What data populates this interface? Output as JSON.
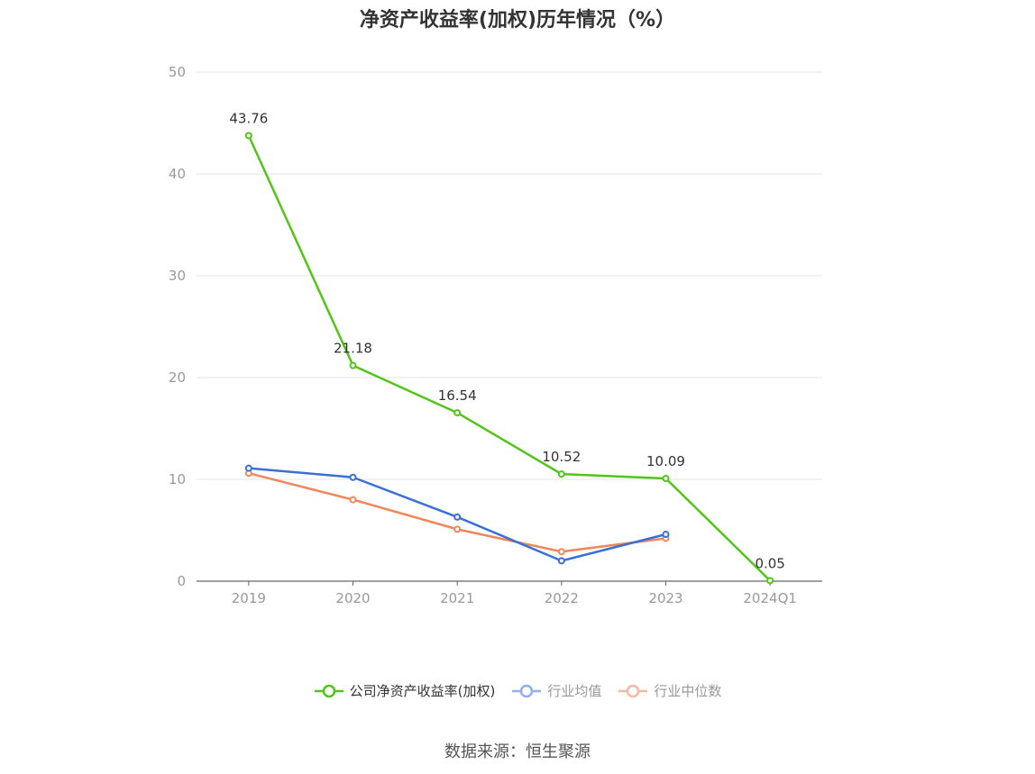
{
  "source": "数据来源：恒生聚源",
  "chart_data": {
    "type": "line",
    "title": "净资产收益率(加权)历年情况（%）",
    "categories": [
      "2019",
      "2020",
      "2021",
      "2022",
      "2023",
      "2024Q1"
    ],
    "ylim": [
      0,
      50
    ],
    "yticks": [
      "0",
      "10",
      "20",
      "30",
      "40",
      "50"
    ],
    "grid": true,
    "legend_position": "bottom",
    "series": [
      {
        "name": "公司净资产收益率(加权)",
        "color": "#52c41a",
        "values": [
          43.76,
          21.18,
          16.54,
          10.52,
          10.09,
          0.05
        ],
        "labels": [
          "43.76",
          "21.18",
          "16.54",
          "10.52",
          "10.09",
          "0.05"
        ],
        "legend_text_color": "#333333"
      },
      {
        "name": "行业均值",
        "color": "#3a6fd8",
        "legend_color": "#8fb0ea",
        "values": [
          11.1,
          10.2,
          6.3,
          2.0,
          4.6,
          null
        ],
        "legend_text_color": "#999999"
      },
      {
        "name": "行业中位数",
        "color": "#f0875a",
        "legend_color": "#f5b8a0",
        "values": [
          10.6,
          8.0,
          5.1,
          2.9,
          4.2,
          null
        ],
        "legend_text_color": "#999999"
      }
    ]
  }
}
